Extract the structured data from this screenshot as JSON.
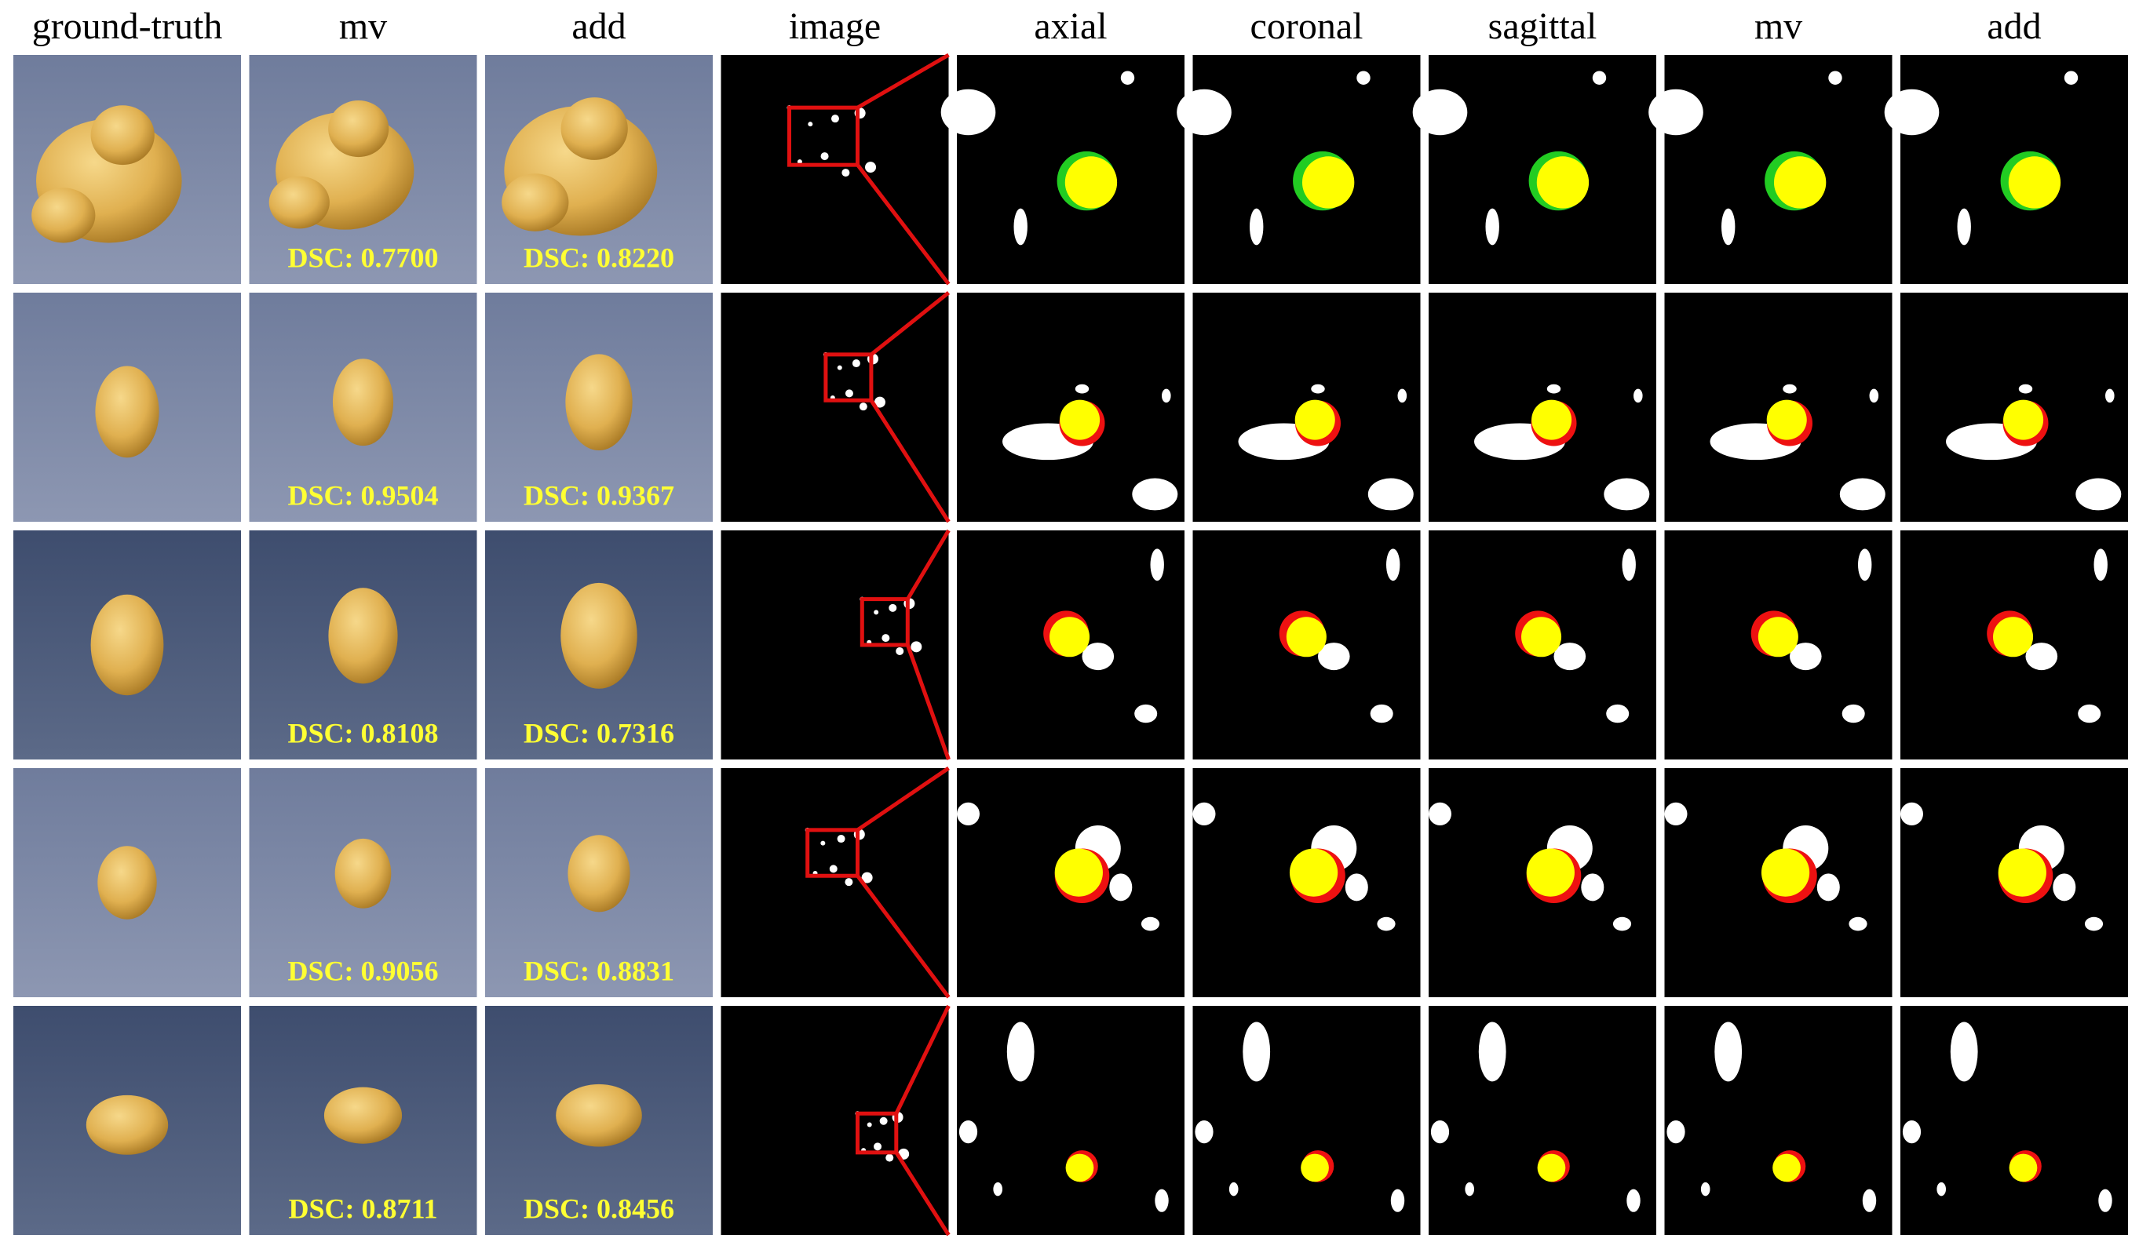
{
  "headers": [
    "ground-truth",
    "mv",
    "add",
    "image",
    "axial",
    "coronal",
    "sagittal",
    "mv",
    "add"
  ],
  "rows": [
    {
      "mv_dsc": "DSC: 0.7700",
      "add_dsc": "DSC: 0.8220"
    },
    {
      "mv_dsc": "DSC: 0.9504",
      "add_dsc": "DSC: 0.9367"
    },
    {
      "mv_dsc": "DSC: 0.8108",
      "add_dsc": "DSC: 0.7316"
    },
    {
      "mv_dsc": "DSC: 0.9056",
      "add_dsc": "DSC: 0.8831"
    },
    {
      "mv_dsc": "DSC: 0.8711",
      "add_dsc": "DSC: 0.8456"
    }
  ]
}
